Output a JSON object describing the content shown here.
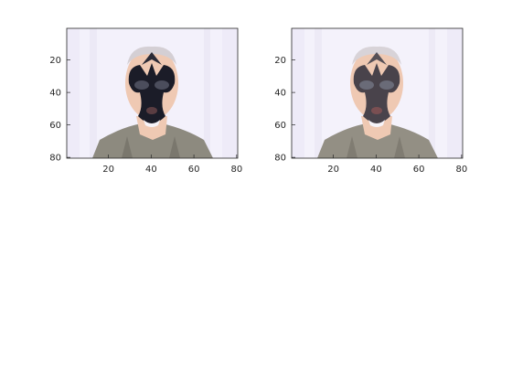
{
  "chart_data": [
    {
      "type": "image",
      "panel": "left",
      "image_content": "face-photo-with-dark-overlay",
      "xlim": [
        0.5,
        80.5
      ],
      "ylim": [
        80.5,
        0.5
      ],
      "y_reversed": true,
      "xticks": [
        20,
        40,
        60,
        80
      ],
      "yticks": [
        20,
        40,
        60,
        80
      ],
      "xtick_labels": [
        "20",
        "40",
        "60",
        "80"
      ],
      "ytick_labels": [
        "20",
        "40",
        "60",
        "80"
      ],
      "grid": false
    },
    {
      "type": "image",
      "panel": "right",
      "image_content": "face-photo-with-softer-dark-overlay",
      "xlim": [
        0.5,
        80.5
      ],
      "ylim": [
        80.5,
        0.5
      ],
      "y_reversed": true,
      "xticks": [
        20,
        40,
        60,
        80
      ],
      "yticks": [
        20,
        40,
        60,
        80
      ],
      "xtick_labels": [
        "20",
        "40",
        "60",
        "80"
      ],
      "ytick_labels": [
        "20",
        "40",
        "60",
        "80"
      ],
      "grid": false
    }
  ],
  "colors": {
    "background_sheet": "#f3f1fb",
    "skin": "#efc9b3",
    "shirt": "#8d8a7f",
    "hair": "#d4cfd4",
    "overlay_dark": "#1b1c28",
    "mouth": "#5a3d42"
  }
}
